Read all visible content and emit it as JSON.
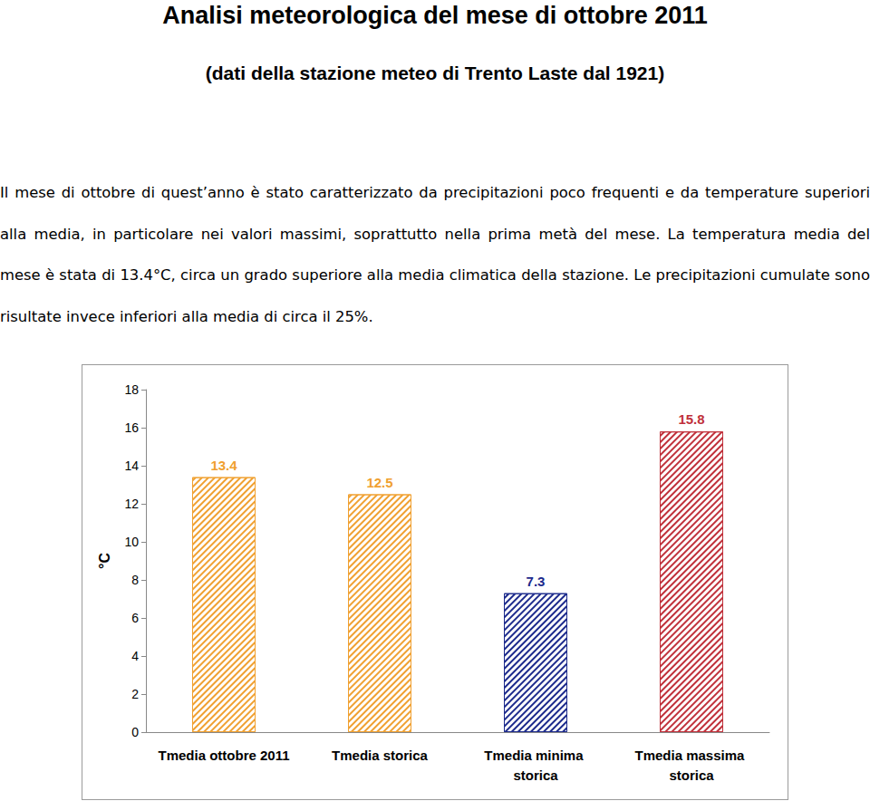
{
  "title": "Analisi meteorologica del mese di ottobre 2011",
  "subtitle": "(dati della stazione meteo di Trento Laste dal 1921)",
  "paragraph": "Il mese di ottobre di quest’anno è stato caratterizzato da precipitazioni poco frequenti e da temperature superiori alla media, in particolare nei valori massimi, soprattutto nella prima metà del mese. La temperatura media del mese è stata di 13.4°C, circa un grado superiore alla media climatica della stazione. Le precipitazioni cumulate sono risultate invece inferiori alla media di circa il 25%.",
  "chart_data": {
    "type": "bar",
    "categories": [
      "Tmedia ottobre 2011",
      "Tmedia storica",
      "Tmedia minima storica",
      "Tmedia massima storica"
    ],
    "values": [
      13.4,
      12.5,
      7.3,
      15.8
    ],
    "colors": [
      "#f0a030",
      "#f0a030",
      "#1c2a8c",
      "#c0303a"
    ],
    "y_label": "°C",
    "ylim": [
      0,
      18
    ],
    "yticks": [
      0,
      2,
      4,
      6,
      8,
      10,
      12,
      14,
      16,
      18
    ],
    "grid": false,
    "data_labels": true
  }
}
